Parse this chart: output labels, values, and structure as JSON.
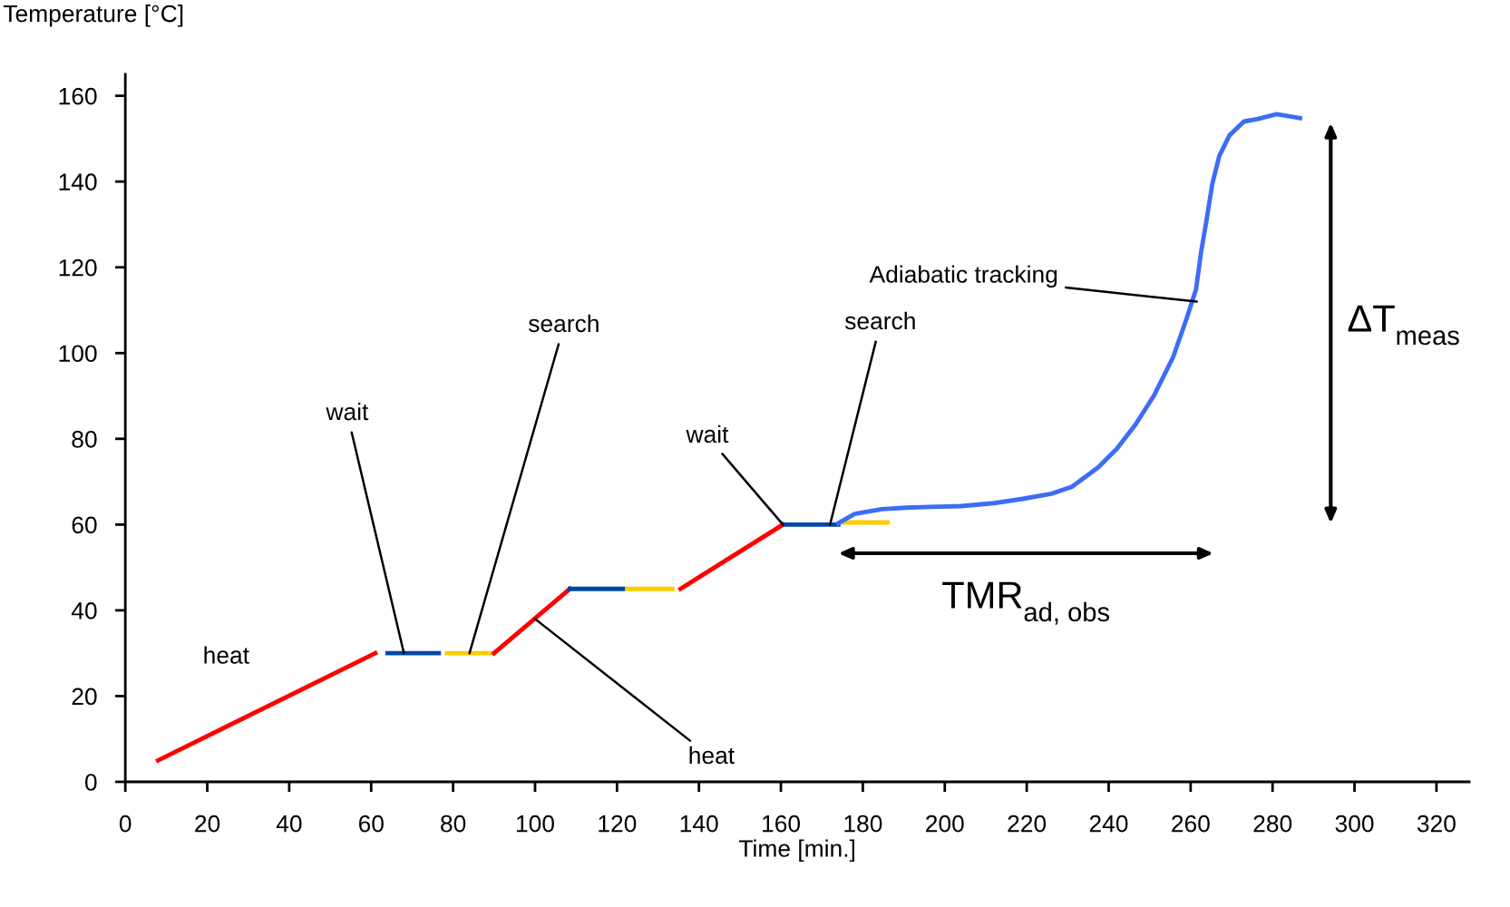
{
  "chart_data": {
    "type": "line",
    "xlabel": "Time [min.]",
    "ylabel": "Temperature [°C]",
    "series": [
      {
        "color": "#ff0000",
        "x": [
          8,
          61
        ],
        "values": [
          5,
          30
        ]
      },
      {
        "color": "#0047ab",
        "x": [
          64,
          76.5
        ],
        "values": [
          30,
          30
        ]
      },
      {
        "color": "#ffcc00",
        "x": [
          78.5,
          90
        ],
        "values": [
          30,
          30
        ]
      },
      {
        "color": "#ff0000",
        "x": [
          90,
          108.5
        ],
        "values": [
          30,
          45
        ]
      },
      {
        "color": "#0047ab",
        "x": [
          108.5,
          121.5
        ],
        "values": [
          45,
          45
        ]
      },
      {
        "color": "#ffcc00",
        "x": [
          122.5,
          133.5
        ],
        "values": [
          45,
          45
        ]
      },
      {
        "color": "#ff0000",
        "x": [
          135.5,
          160.5
        ],
        "values": [
          45,
          60
        ]
      },
      {
        "color": "#0047ab",
        "x": [
          161,
          174
        ],
        "values": [
          60,
          60
        ]
      },
      {
        "color": "#ffcc00",
        "x": [
          175.5,
          186
        ],
        "values": [
          60.5,
          60.5
        ]
      },
      {
        "color": "#3d6df7",
        "x": [
          174,
          178,
          184.6,
          191.5,
          204,
          212,
          219,
          226,
          231,
          237.4,
          242,
          246.6,
          251,
          255.7,
          259,
          261.3,
          262.6,
          263.8,
          265.3,
          267,
          269.5,
          273,
          276.4,
          281,
          286.7
        ],
        "values": [
          60.3,
          62.5,
          63.6,
          64,
          64.3,
          65,
          66,
          67.2,
          68.8,
          73.3,
          77.7,
          83.4,
          90,
          99,
          108,
          114.8,
          123.8,
          130.5,
          139.5,
          146,
          150.8,
          154,
          154.6,
          155.7,
          154.8
        ]
      }
    ],
    "annotations": [
      "heat",
      {
        "text": "wait",
        "x": 68,
        "y": 30
      },
      {
        "text": "search",
        "x": 84,
        "y": 30
      },
      {
        "text": "heat",
        "x": 100,
        "y": 38
      },
      {
        "text": "wait",
        "x": 160.5,
        "y": 60
      },
      {
        "text": "search",
        "x": 172,
        "y": 60
      },
      {
        "text": "Adiabatic tracking",
        "x": 261.5,
        "y": 112
      },
      "TMR$_{ad, obs}$",
      "ΔT$_{meas}$"
    ],
    "xlim": [
      0,
      328
    ],
    "ylim": [
      0,
      165
    ],
    "xticks": [
      0,
      20,
      40,
      60,
      80,
      100,
      120,
      140,
      160,
      180,
      200,
      220,
      240,
      260,
      280,
      300,
      320
    ],
    "yticks": [
      0,
      20,
      40,
      60,
      80,
      100,
      120,
      140,
      160
    ],
    "grid": false,
    "legend": false,
    "marker": "none",
    "line_style": "solid"
  }
}
